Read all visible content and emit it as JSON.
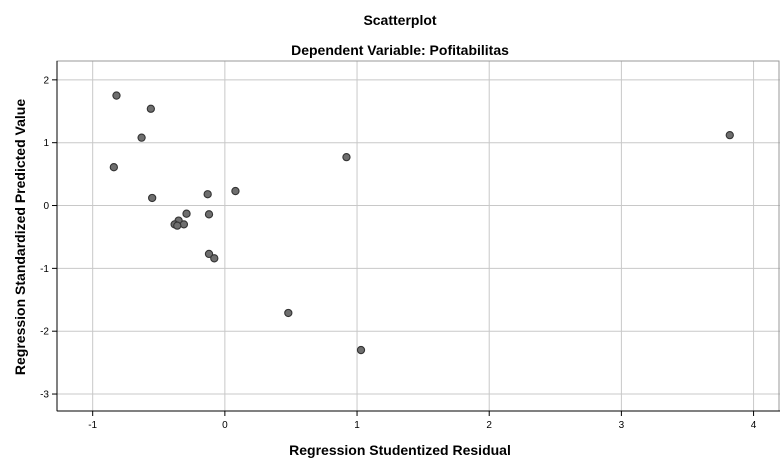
{
  "chart_data": {
    "type": "scatter",
    "title": "Scatterplot",
    "subtitle": "Dependent Variable: Pofitabilitas",
    "xlabel": "Regression Studentized Residual",
    "ylabel": "Regression Standardized Predicted Value",
    "xlim": [
      -1.27,
      4.2
    ],
    "ylim": [
      -3.27,
      2.3
    ],
    "xticks": [
      -1,
      0,
      1,
      2,
      3,
      4
    ],
    "yticks": [
      -3,
      -2,
      -1,
      0,
      1,
      2
    ],
    "grid": true,
    "points": [
      {
        "x": -0.82,
        "y": 1.75
      },
      {
        "x": -0.56,
        "y": 1.54
      },
      {
        "x": -0.63,
        "y": 1.08
      },
      {
        "x": -0.84,
        "y": 0.61
      },
      {
        "x": -0.55,
        "y": 0.12
      },
      {
        "x": -0.13,
        "y": 0.18
      },
      {
        "x": 0.08,
        "y": 0.23
      },
      {
        "x": -0.29,
        "y": -0.13
      },
      {
        "x": -0.12,
        "y": -0.14
      },
      {
        "x": -0.35,
        "y": -0.24
      },
      {
        "x": -0.31,
        "y": -0.3
      },
      {
        "x": -0.38,
        "y": -0.3
      },
      {
        "x": -0.36,
        "y": -0.32
      },
      {
        "x": -0.12,
        "y": -0.77
      },
      {
        "x": -0.08,
        "y": -0.84
      },
      {
        "x": 0.92,
        "y": 0.77
      },
      {
        "x": 3.82,
        "y": 1.12
      },
      {
        "x": 0.48,
        "y": -1.71
      },
      {
        "x": 1.03,
        "y": -2.3
      }
    ],
    "colors": {
      "point_fill": "#6e6e6e",
      "point_stroke": "#333333",
      "grid": "#c8c8c8",
      "axis": "#000000"
    }
  }
}
